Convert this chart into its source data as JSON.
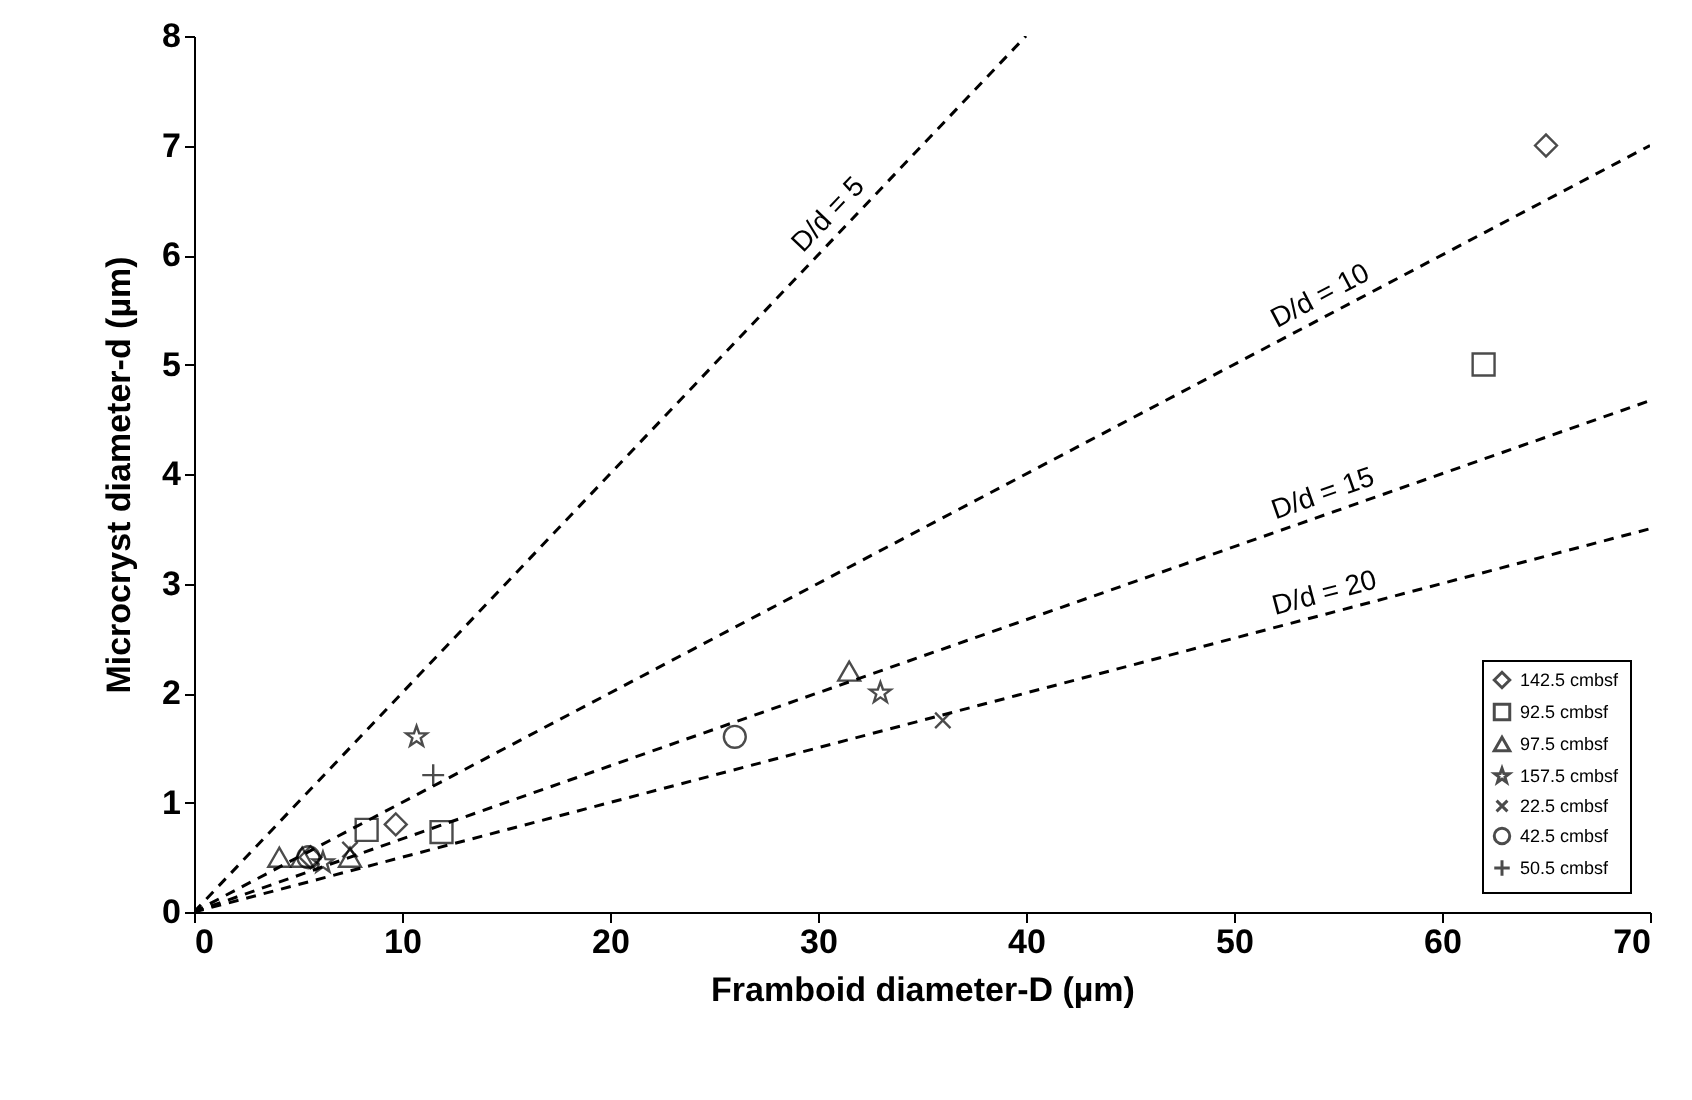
{
  "chart_data": {
    "type": "scatter",
    "xlabel": "Framboid diameter-D (µm)",
    "ylabel": "Microcryst diameter-d (µm)",
    "xlim": [
      0,
      70
    ],
    "ylim": [
      0,
      8
    ],
    "xticks": [
      0,
      10,
      20,
      30,
      40,
      50,
      60,
      70
    ],
    "yticks": [
      0,
      1,
      2,
      3,
      4,
      5,
      6,
      7,
      8
    ],
    "grid": false,
    "legend": "bottom right",
    "series": [
      {
        "name": "142.5 cmbsf",
        "color": "#000000",
        "marker": "diamond",
        "x": [
          65,
          9.7,
          5.6
        ],
        "values": [
          7,
          0.8,
          0.5
        ]
      },
      {
        "name": "92.5 cmbsf",
        "color": "#000000",
        "marker": "square",
        "x": [
          62,
          8.3,
          11.9
        ],
        "values": [
          5,
          0.75,
          0.73
        ]
      },
      {
        "name": "97.5 cmbsf",
        "color": "#000000",
        "marker": "triangle",
        "x": [
          31.5,
          4.1,
          5.2,
          7.5
        ],
        "values": [
          2.2,
          0.5,
          0.5,
          0.5
        ]
      },
      {
        "name": "157.5 cmbsf",
        "color": "#000000",
        "marker": "star",
        "x": [
          10.7,
          33,
          6.2
        ],
        "values": [
          1.6,
          2.0,
          0.45
        ]
      },
      {
        "name": "22.5 cmbsf",
        "color": "#000000",
        "marker": "x",
        "x": [
          36,
          7.5
        ],
        "values": [
          1.75,
          0.57
        ]
      },
      {
        "name": "42.5 cmbsf",
        "color": "#000000",
        "marker": "circle",
        "x": [
          26,
          5.5
        ],
        "values": [
          1.6,
          0.5
        ]
      },
      {
        "name": "50.5 cmbsf",
        "color": "#000000",
        "marker": "cross",
        "x": [
          11.5
        ],
        "values": [
          1.25
        ]
      },
      {
        "name": "D/d = 5",
        "type": "line",
        "color": "#000000",
        "line_style": "dashed",
        "x": [
          0,
          40
        ],
        "values": [
          0,
          8
        ]
      },
      {
        "name": "D/d = 10",
        "type": "line",
        "color": "#000000",
        "line_style": "dashed",
        "x": [
          0,
          70
        ],
        "values": [
          0,
          7
        ]
      },
      {
        "name": "D/d = 15",
        "type": "line",
        "color": "#000000",
        "line_style": "dashed",
        "x": [
          0,
          70
        ],
        "values": [
          0,
          4.67
        ]
      },
      {
        "name": "D/d = 20",
        "type": "line",
        "color": "#000000",
        "line_style": "dashed",
        "x": [
          0,
          70
        ],
        "values": [
          0,
          3.5
        ]
      }
    ]
  }
}
